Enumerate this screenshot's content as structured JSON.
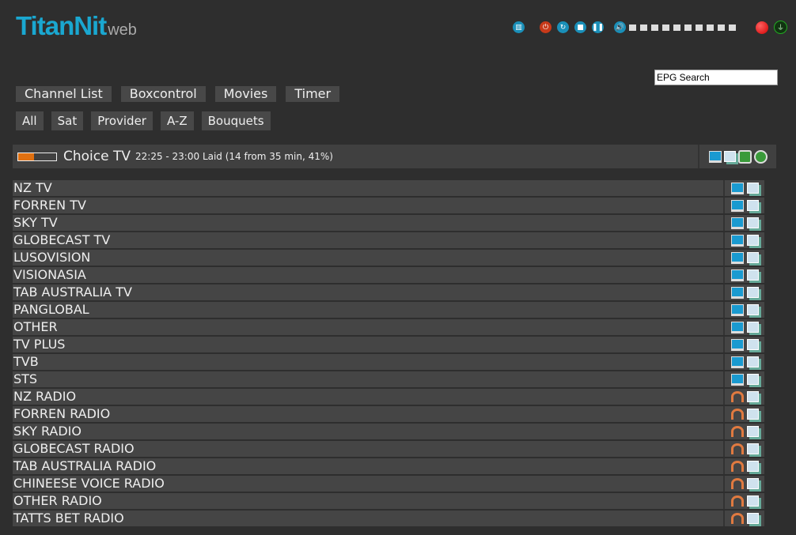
{
  "logo": {
    "title": "TitanNit",
    "suffix": "web"
  },
  "controls": {
    "icons": [
      "remote-icon",
      "power-icon",
      "restart-icon",
      "stop-icon",
      "pause-icon",
      "volume-icon"
    ],
    "volume_steps": 10,
    "record_color": "#e00000"
  },
  "epg_search": {
    "value": "EPG Search"
  },
  "nav": [
    "Channel List",
    "Boxcontrol",
    "Movies",
    "Timer"
  ],
  "filters": [
    "All",
    "Sat",
    "Provider",
    "A-Z",
    "Bouquets"
  ],
  "current": {
    "channel": "Choice TV",
    "info": "22:25 - 23:00 Laid (14 from 35 min, 41%)",
    "progress": 41,
    "progress_color": "#e07010"
  },
  "bouquets": [
    {
      "name": "NZ TV",
      "type": "tv"
    },
    {
      "name": "FORREN TV",
      "type": "tv"
    },
    {
      "name": "SKY TV",
      "type": "tv"
    },
    {
      "name": "GLOBECAST TV",
      "type": "tv"
    },
    {
      "name": "LUSOVISION",
      "type": "tv"
    },
    {
      "name": "VISIONASIA",
      "type": "tv"
    },
    {
      "name": "TAB AUSTRALIA TV",
      "type": "tv"
    },
    {
      "name": "PANGLOBAL",
      "type": "tv"
    },
    {
      "name": "OTHER",
      "type": "tv"
    },
    {
      "name": "TV PLUS",
      "type": "tv"
    },
    {
      "name": "TVB",
      "type": "tv"
    },
    {
      "name": "STS",
      "type": "tv"
    },
    {
      "name": "NZ RADIO",
      "type": "radio"
    },
    {
      "name": "FORREN RADIO",
      "type": "radio"
    },
    {
      "name": "SKY RADIO",
      "type": "radio"
    },
    {
      "name": "GLOBECAST RADIO",
      "type": "radio"
    },
    {
      "name": "TAB AUSTRALIA RADIO",
      "type": "radio"
    },
    {
      "name": "CHINEESE VOICE RADIO",
      "type": "radio"
    },
    {
      "name": "OTHER RADIO",
      "type": "radio"
    },
    {
      "name": "TATTS BET RADIO",
      "type": "radio"
    }
  ]
}
